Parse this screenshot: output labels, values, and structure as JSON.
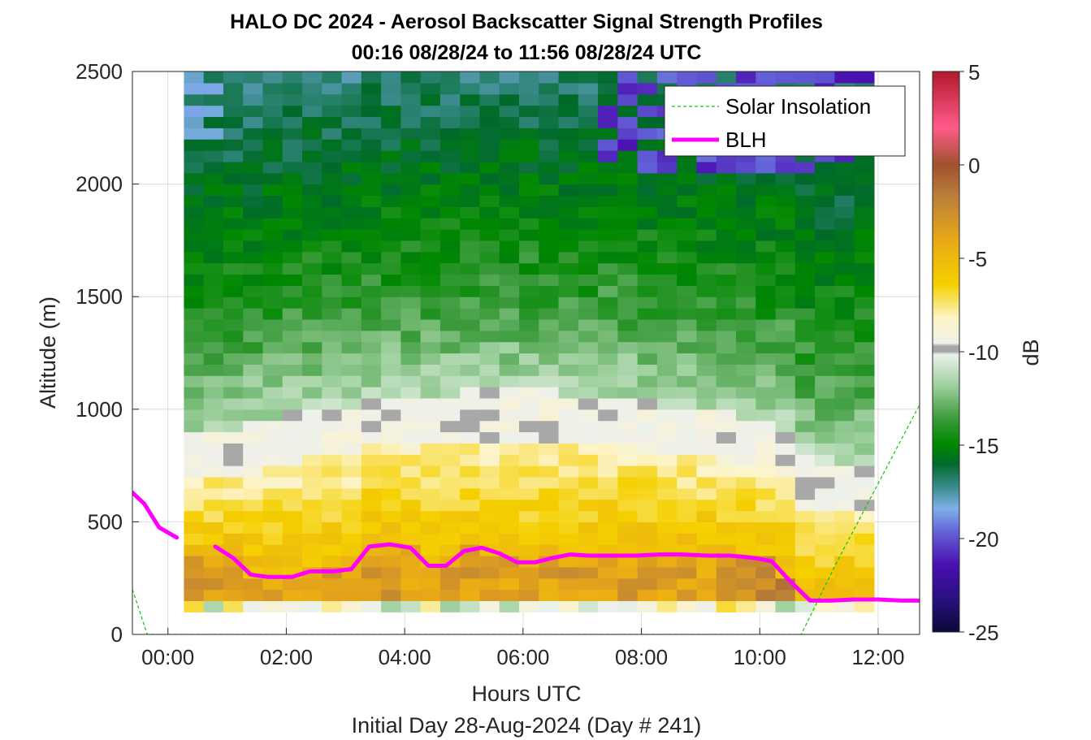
{
  "chart_data": {
    "type": "heatmap",
    "title": "HALO DC 2024 - Aerosol Backscatter Signal Strength Profiles",
    "subtitle": "00:16 08/28/24 to 11:56 08/28/24  UTC",
    "xlabel": "Hours UTC",
    "xlabel2": "Initial Day 28-Aug-2024 (Day # 241)",
    "ylabel": "Altitude (m)",
    "colorbar_label": "dB",
    "xlim": [
      -0.6,
      12.7
    ],
    "ylim": [
      0,
      2500
    ],
    "x_ticks": [
      0,
      2,
      4,
      6,
      8,
      10,
      12
    ],
    "x_tick_labels": [
      "00:00",
      "02:00",
      "04:00",
      "06:00",
      "08:00",
      "10:00",
      "12:00"
    ],
    "y_ticks": [
      0,
      500,
      1000,
      1500,
      2000,
      2500
    ],
    "y_tick_labels": [
      "0",
      "500",
      "1000",
      "1500",
      "2000",
      "2500"
    ],
    "clim": [
      -25,
      5
    ],
    "c_ticks": [
      5,
      0,
      -5,
      -10,
      -15,
      -20,
      -25
    ],
    "c_tick_labels": [
      "5",
      "0",
      "-5",
      "-10",
      "-15",
      "-20",
      "-25"
    ],
    "grid": true,
    "legend_position": "top-right",
    "heatmap": {
      "x_start": 0.27,
      "x_end": 11.93,
      "n_columns": 35,
      "y_bottom": 100,
      "y_top": 2500,
      "bin_height_m": 50,
      "description": "Backscatter signal strength in dB; strong (-8 to 0 dB) below the residual layer top near 800-1000 m, decreasing to -15 dB aloft with clear-air (-20 dB) gaps above 2000 m after 07:30 UTC."
    },
    "series": [
      {
        "name": "BLH",
        "color": "#ff00ff",
        "x": [
          -0.6,
          -0.4,
          -0.15,
          0.15,
          0.5,
          0.8,
          1.1,
          1.4,
          1.7,
          2.1,
          2.4,
          2.8,
          3.1,
          3.4,
          3.75,
          4.1,
          4.4,
          4.7,
          5.0,
          5.3,
          5.6,
          5.9,
          6.2,
          6.5,
          6.8,
          7.1,
          7.5,
          7.9,
          8.3,
          8.7,
          9.1,
          9.5,
          9.9,
          10.2,
          10.5,
          10.85,
          11.2,
          11.6,
          12.0,
          12.4,
          12.7
        ],
        "y": [
          630,
          580,
          475,
          430,
          null,
          390,
          340,
          265,
          255,
          255,
          280,
          280,
          290,
          390,
          400,
          385,
          305,
          305,
          370,
          385,
          360,
          320,
          320,
          340,
          355,
          350,
          350,
          350,
          355,
          355,
          350,
          350,
          340,
          325,
          240,
          150,
          150,
          155,
          155,
          150,
          150
        ],
        "gap_between_x": [
          0.2,
          0.5
        ]
      },
      {
        "name": "Solar Insolation",
        "color": "#00cc00",
        "style": "dashed",
        "x": [
          -0.6,
          -0.35,
          10.7,
          11.3,
          12.0,
          12.7
        ],
        "y": [
          200,
          0,
          0,
          320,
          670,
          1020
        ]
      }
    ]
  }
}
